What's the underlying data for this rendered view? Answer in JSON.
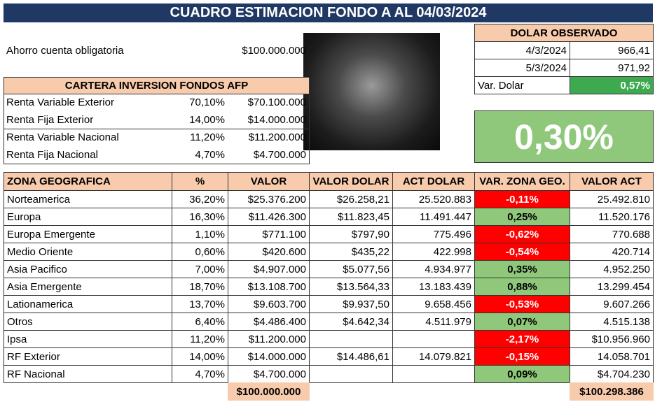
{
  "header": {
    "title": "CUADRO ESTIMACION FONDO A AL 04/03/2024"
  },
  "ahorro": {
    "label": "Ahorro cuenta obligatoria",
    "value": "$100.000.000"
  },
  "cartera": {
    "title": "CARTERA INVERSION FONDOS AFP",
    "rows": [
      [
        "Renta Variable Exterior",
        "70,10%",
        "$70.100.000"
      ],
      [
        "Renta Fija Exterior",
        "14,00%",
        "$14.000.000"
      ],
      [
        "Renta Variable Nacional",
        "11,20%",
        "$11.200.000"
      ],
      [
        "Renta Fija Nacional",
        "4,70%",
        "$4.700.000"
      ]
    ]
  },
  "dolar": {
    "title": "DOLAR OBSERVADO",
    "rows": [
      [
        "4/3/2024",
        "966,41"
      ],
      [
        "5/3/2024",
        "971,92"
      ],
      [
        "Var. Dolar",
        "0,57%"
      ]
    ]
  },
  "summary": {
    "value": "0,30%"
  },
  "zonas": {
    "columns": [
      "ZONA GEOGRAFICA",
      "%",
      "VALOR",
      "VALOR DOLAR",
      "ACT DOLAR",
      "VAR. ZONA GEO.",
      "VALOR ACT"
    ],
    "rows": [
      [
        "Norteamerica",
        "36,20%",
        "$25.376.200",
        "$26.258,21",
        "25.520.883",
        "-0,11%",
        "25.492.810"
      ],
      [
        "Europa",
        "16,30%",
        "$11.426.300",
        "$11.823,45",
        "11.491.447",
        "0,25%",
        "11.520.176"
      ],
      [
        "Europa Emergente",
        "1,10%",
        "$771.100",
        "$797,90",
        "775.496",
        "-0,62%",
        "770.688"
      ],
      [
        "Medio Oriente",
        "0,60%",
        "$420.600",
        "$435,22",
        "422.998",
        "-0,54%",
        "420.714"
      ],
      [
        "Asia Pacifico",
        "7,00%",
        "$4.907.000",
        "$5.077,56",
        "4.934.977",
        "0,35%",
        "4.952.250"
      ],
      [
        "Asia Emergente",
        "18,70%",
        "$13.108.700",
        "$13.564,33",
        "13.183.439",
        "0,88%",
        "13.299.454"
      ],
      [
        "Lationamerica",
        "13,70%",
        "$9.603.700",
        "$9.937,50",
        "9.658.456",
        "-0,53%",
        "9.607.266"
      ],
      [
        "Otros",
        "6,40%",
        "$4.486.400",
        "$4.642,34",
        "4.511.979",
        "0,07%",
        "4.515.138"
      ],
      [
        "Ipsa",
        "11,20%",
        "$11.200.000",
        null,
        null,
        "-2,17%",
        "$10.956.960"
      ],
      [
        "RF Exterior",
        "14,00%",
        "$14.000.000",
        "$14.486,61",
        "14.079.821",
        "-0,15%",
        "14.058.701"
      ],
      [
        "RF Nacional",
        "4,70%",
        "$4.700.000",
        null,
        null,
        "0,09%",
        "$4.704.230"
      ]
    ],
    "totals": {
      "valor": "$100.000.000",
      "valor_act": "$100.298.386"
    }
  }
}
